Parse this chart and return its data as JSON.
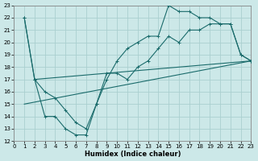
{
  "xlabel": "Humidex (Indice chaleur)",
  "bg_color": "#cce8e8",
  "grid_color": "#aacfcf",
  "line_color": "#1a6b6b",
  "xlim": [
    0,
    23
  ],
  "ylim": [
    12,
    23
  ],
  "xticks": [
    0,
    1,
    2,
    3,
    4,
    5,
    6,
    7,
    8,
    9,
    10,
    11,
    12,
    13,
    14,
    15,
    16,
    17,
    18,
    19,
    20,
    21,
    22,
    23
  ],
  "yticks": [
    12,
    13,
    14,
    15,
    16,
    17,
    18,
    19,
    20,
    21,
    22,
    23
  ],
  "line1_x": [
    1,
    2,
    3,
    4,
    5,
    6,
    7,
    8,
    9,
    10,
    11,
    12,
    13,
    14,
    15,
    16,
    17,
    18,
    19,
    20,
    21,
    22,
    23
  ],
  "line1_y": [
    22,
    17,
    16,
    15.5,
    14.5,
    13.5,
    13,
    15,
    17.5,
    17.5,
    17,
    18,
    18.5,
    19.5,
    20.5,
    20,
    21,
    21,
    21.5,
    21.5,
    21.5,
    19,
    18.5
  ],
  "line2_x": [
    1,
    2,
    3,
    4,
    5,
    6,
    7,
    8,
    9,
    10,
    11,
    12,
    13,
    14,
    15,
    16,
    17,
    18,
    19,
    20,
    21,
    22,
    23
  ],
  "line2_y": [
    22,
    17,
    14,
    14,
    13,
    12.5,
    12.5,
    15,
    17,
    18.5,
    19.5,
    20,
    20.5,
    20.5,
    23,
    22.5,
    22.5,
    22,
    22,
    21.5,
    21.5,
    19,
    18.5
  ],
  "line3_x": [
    2,
    23
  ],
  "line3_y": [
    17,
    18.5
  ],
  "line4_x": [
    1,
    23
  ],
  "line4_y": [
    15,
    18.5
  ]
}
